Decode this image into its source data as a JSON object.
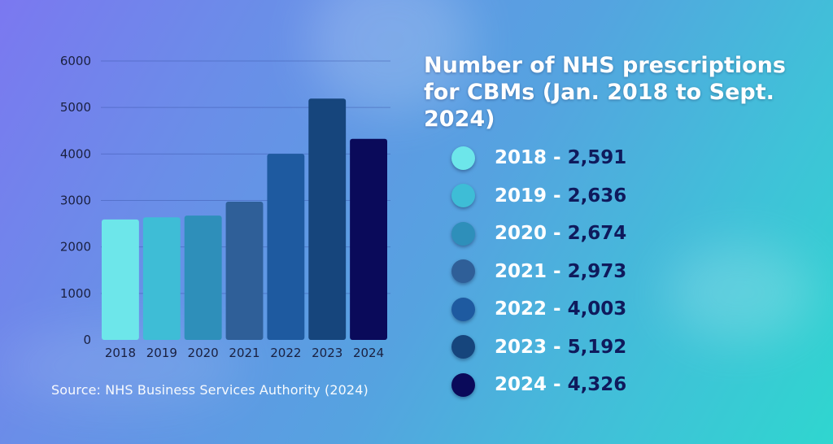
{
  "title": "Number of NHS prescriptions for CBMs (Jan. 2018 to Sept. 2024)",
  "source": "Source: NHS Business Services Authority (2024)",
  "legend": [
    {
      "year": "2018",
      "sep": "-",
      "value": "2,591",
      "color": "#6de6ea"
    },
    {
      "year": "2019",
      "sep": "-",
      "value": "2,636",
      "color": "#3ebdd6"
    },
    {
      "year": "2020",
      "sep": "-",
      "value": "2,674",
      "color": "#2e8fba"
    },
    {
      "year": "2021",
      "sep": "-",
      "value": "2,973",
      "color": "#2f5f98"
    },
    {
      "year": "2022",
      "sep": "-",
      "value": "4,003",
      "color": "#1e5aa0"
    },
    {
      "year": "2023",
      "sep": "-",
      "value": "5,192",
      "color": "#16457c"
    },
    {
      "year": "2024",
      "sep": "-",
      "value": "4,326",
      "color": "#0a0a5a"
    }
  ],
  "chart_data": {
    "type": "bar",
    "title": "Number of NHS prescriptions for CBMs (Jan. 2018 to Sept. 2024)",
    "xlabel": "",
    "ylabel": "",
    "categories": [
      "2018",
      "2019",
      "2020",
      "2021",
      "2022",
      "2023",
      "2024"
    ],
    "values": [
      2591,
      2636,
      2674,
      2973,
      4003,
      5192,
      4326
    ],
    "colors": [
      "#6de6ea",
      "#3ebdd6",
      "#2e8fba",
      "#2f5f98",
      "#1e5aa0",
      "#16457c",
      "#0a0a5a"
    ],
    "ylim": [
      0,
      6000
    ],
    "yticks": [
      0,
      1000,
      2000,
      3000,
      4000,
      5000,
      6000
    ],
    "grid": true,
    "legend_position": "right",
    "source": "Source: NHS Business Services Authority (2024)"
  }
}
